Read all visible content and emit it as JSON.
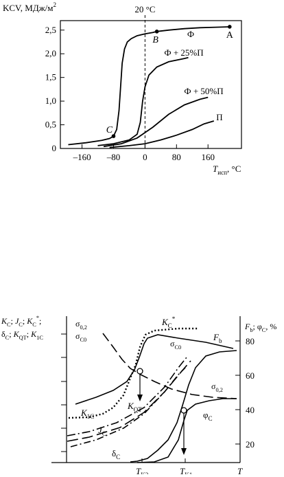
{
  "chart_data": [
    {
      "type": "line",
      "ylabel": "KCV, МДж/м",
      "ylabel_sup": "2",
      "xlabel_main": "T",
      "xlabel_sub": "исп",
      "xlabel_unit": ", °C",
      "xlim": [
        -215,
        245
      ],
      "ylim": [
        0,
        2.7
      ],
      "xticks": [
        -160,
        -80,
        0,
        80,
        160
      ],
      "xtick_labels": [
        "–160",
        "–80",
        "0",
        "80",
        "160"
      ],
      "yticks": [
        0,
        0.5,
        1.0,
        1.5,
        2.0,
        2.5
      ],
      "ytick_labels": [
        "0",
        "0,5",
        "1,0",
        "1,5",
        "2,0",
        "2,5"
      ],
      "vline": {
        "x": 0,
        "label": "20 °C"
      },
      "series": [
        {
          "name": "Ф",
          "x": [
            -195,
            -150,
            -110,
            -90,
            -80,
            -72,
            -66,
            -62,
            -58,
            -52,
            -45,
            -35,
            -20,
            0,
            20,
            30,
            60,
            100,
            140,
            180,
            215
          ],
          "y": [
            0.08,
            0.12,
            0.17,
            0.21,
            0.26,
            0.4,
            0.8,
            1.3,
            1.8,
            2.1,
            2.25,
            2.32,
            2.38,
            2.42,
            2.45,
            2.47,
            2.5,
            2.53,
            2.55,
            2.56,
            2.57
          ]
        },
        {
          "name": "Ф + 25%П",
          "x": [
            -120,
            -80,
            -40,
            -20,
            -12,
            -6,
            0,
            10,
            30,
            60,
            100,
            110
          ],
          "y": [
            0.06,
            0.1,
            0.18,
            0.3,
            0.55,
            1.0,
            1.3,
            1.55,
            1.72,
            1.83,
            1.9,
            1.92
          ]
        },
        {
          "name": "Ф + 50%П",
          "x": [
            -105,
            -60,
            -20,
            20,
            60,
            100,
            140,
            160
          ],
          "y": [
            0.04,
            0.1,
            0.22,
            0.45,
            0.72,
            0.92,
            1.04,
            1.08
          ]
        },
        {
          "name": "П",
          "x": [
            -90,
            -40,
            0,
            40,
            80,
            120,
            150,
            175
          ],
          "y": [
            0.02,
            0.06,
            0.1,
            0.18,
            0.28,
            0.4,
            0.52,
            0.58
          ]
        }
      ],
      "points": [
        {
          "label": "A",
          "x": 215,
          "y": 2.57
        },
        {
          "label": "B",
          "x": 30,
          "y": 2.47
        },
        {
          "label": "C",
          "x": -80,
          "y": 0.26
        }
      ],
      "annotations": [
        "Ф",
        "Ф + 25%П",
        "Ф + 50%П",
        "П"
      ]
    },
    {
      "type": "line",
      "left_axis_label_line1": "K",
      "left_axis_label_parts": {
        "l1": [
          [
            "K",
            "C"
          ],
          [
            "; J",
            "C"
          ],
          [
            "; K",
            "C"
          ]
        ],
        "kc_star": "*",
        "l2": [
          [
            "δ",
            "C"
          ],
          [
            "; K",
            "QT"
          ],
          [
            "; K",
            "1C"
          ]
        ]
      },
      "right_axis_label": "F",
      "right_axis_label_parts": {
        "F_sub": "b",
        "rest": "; φ",
        "phi_sub": "C",
        "unit": ", %"
      },
      "right_yticks": [
        20,
        40,
        60,
        80
      ],
      "x_axis_label": "T",
      "x_ticks": [
        {
          "main": "T",
          "sub": "K2"
        },
        {
          "main": "T",
          "sub": "K1"
        }
      ],
      "curve_labels": {
        "sigma02_left": [
          "σ",
          "0,2"
        ],
        "sigmaC0_left": [
          "σ",
          "C0"
        ],
        "KC_star": [
          "K",
          "C",
          "*"
        ],
        "sigmaC0_right": [
          "σ",
          "C0"
        ],
        "Fb": [
          "F",
          "b"
        ],
        "sigma02_right": [
          "σ",
          "0,2"
        ],
        "KQT": [
          "K",
          "QT"
        ],
        "K1C": [
          "K",
          "1C"
        ],
        "JC": [
          "J",
          "C"
        ],
        "phiC": [
          "φ",
          "C"
        ],
        "deltaC": [
          "δ",
          "C"
        ]
      }
    }
  ]
}
